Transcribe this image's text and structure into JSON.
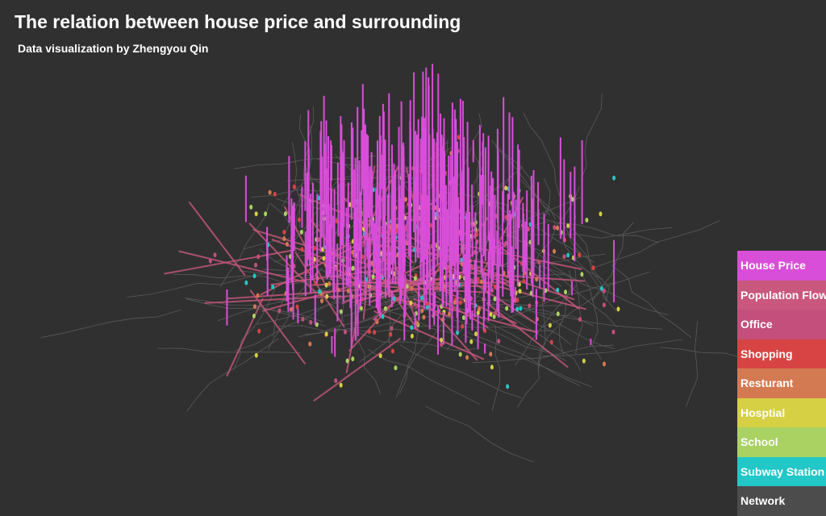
{
  "header": {
    "title": "The relation between house price and surrounding",
    "subtitle": "Data visualization by Zhengyou Qin"
  },
  "legend": [
    {
      "label": "House Price",
      "color": "#d94ed9"
    },
    {
      "label": "Population Flow",
      "color": "#c9577e"
    },
    {
      "label": "Office",
      "color": "#c44f7c"
    },
    {
      "label": "Shopping",
      "color": "#d84444"
    },
    {
      "label": "Resturant",
      "color": "#d47a52"
    },
    {
      "label": "Hosptial",
      "color": "#d6d044"
    },
    {
      "label": "School",
      "color": "#a9d263"
    },
    {
      "label": "Subway Station",
      "color": "#22c7c7"
    },
    {
      "label": "Network",
      "color": "#4c4c4c"
    }
  ]
}
